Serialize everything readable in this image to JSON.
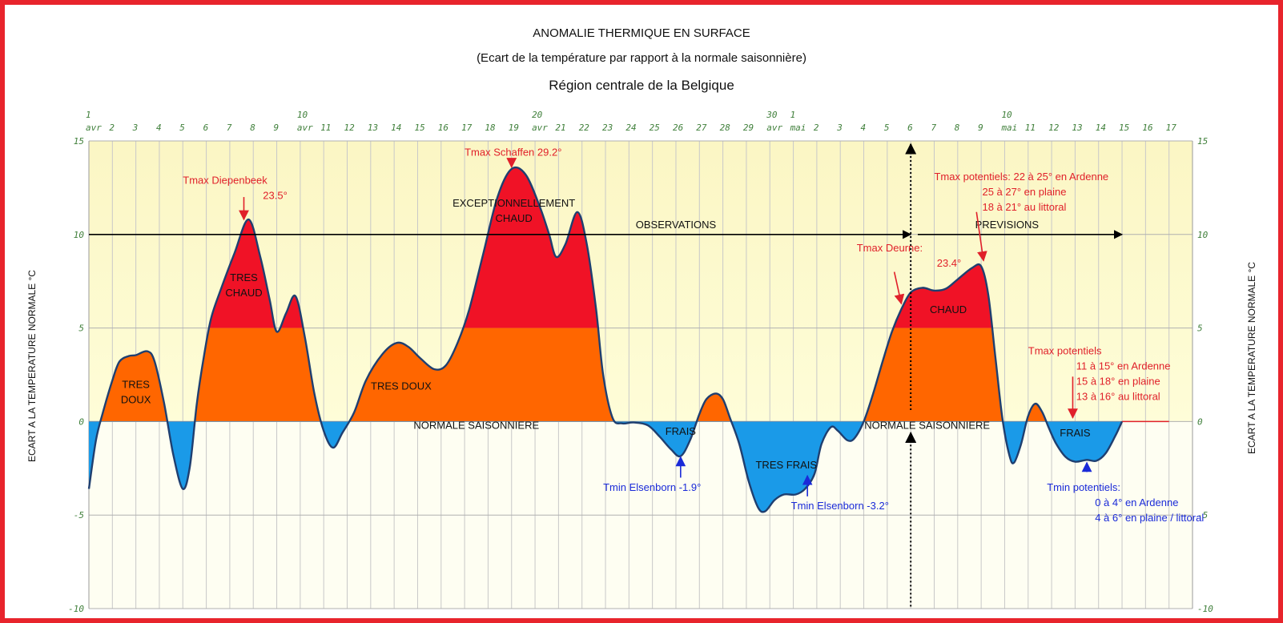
{
  "chart_data": {
    "type": "area",
    "title": "ANOMALIE THERMIQUE EN SURFACE",
    "subtitle": "(Ecart de la température par rapport à la normale saisonnière)",
    "region": "Région centrale de la Belgique",
    "ylabel": "ECART A LA TEMPERATURE NORMALE °C",
    "ylim": [
      -10,
      15
    ],
    "yticks": [
      "15",
      "10",
      "5",
      "0",
      "-5",
      "-10"
    ],
    "grid": true,
    "x_labels": [
      {
        "x": 1,
        "l1": "1",
        "l2": "avr"
      },
      {
        "x": 2,
        "l1": "",
        "l2": "2"
      },
      {
        "x": 3,
        "l1": "",
        "l2": "3"
      },
      {
        "x": 4,
        "l1": "",
        "l2": "4"
      },
      {
        "x": 5,
        "l1": "",
        "l2": "5"
      },
      {
        "x": 6,
        "l1": "",
        "l2": "6"
      },
      {
        "x": 7,
        "l1": "",
        "l2": "7"
      },
      {
        "x": 8,
        "l1": "",
        "l2": "8"
      },
      {
        "x": 9,
        "l1": "",
        "l2": "9"
      },
      {
        "x": 10,
        "l1": "10",
        "l2": "avr"
      },
      {
        "x": 11,
        "l1": "",
        "l2": "11"
      },
      {
        "x": 12,
        "l1": "",
        "l2": "12"
      },
      {
        "x": 13,
        "l1": "",
        "l2": "13"
      },
      {
        "x": 14,
        "l1": "",
        "l2": "14"
      },
      {
        "x": 15,
        "l1": "",
        "l2": "15"
      },
      {
        "x": 16,
        "l1": "",
        "l2": "16"
      },
      {
        "x": 17,
        "l1": "",
        "l2": "17"
      },
      {
        "x": 18,
        "l1": "",
        "l2": "18"
      },
      {
        "x": 19,
        "l1": "",
        "l2": "19"
      },
      {
        "x": 20,
        "l1": "20",
        "l2": "avr"
      },
      {
        "x": 21,
        "l1": "",
        "l2": "21"
      },
      {
        "x": 22,
        "l1": "",
        "l2": "22"
      },
      {
        "x": 23,
        "l1": "",
        "l2": "23"
      },
      {
        "x": 24,
        "l1": "",
        "l2": "24"
      },
      {
        "x": 25,
        "l1": "",
        "l2": "25"
      },
      {
        "x": 26,
        "l1": "",
        "l2": "26"
      },
      {
        "x": 27,
        "l1": "",
        "l2": "27"
      },
      {
        "x": 28,
        "l1": "",
        "l2": "28"
      },
      {
        "x": 29,
        "l1": "",
        "l2": "29"
      },
      {
        "x": 30,
        "l1": "30",
        "l2": "avr"
      },
      {
        "x": 31,
        "l1": "1",
        "l2": "mai"
      },
      {
        "x": 32,
        "l1": "",
        "l2": "2"
      },
      {
        "x": 33,
        "l1": "",
        "l2": "3"
      },
      {
        "x": 34,
        "l1": "",
        "l2": "4"
      },
      {
        "x": 35,
        "l1": "",
        "l2": "5"
      },
      {
        "x": 36,
        "l1": "",
        "l2": "6"
      },
      {
        "x": 37,
        "l1": "",
        "l2": "7"
      },
      {
        "x": 38,
        "l1": "",
        "l2": "8"
      },
      {
        "x": 39,
        "l1": "",
        "l2": "9"
      },
      {
        "x": 40,
        "l1": "10",
        "l2": "mai"
      },
      {
        "x": 41,
        "l1": "",
        "l2": "11"
      },
      {
        "x": 42,
        "l1": "",
        "l2": "12"
      },
      {
        "x": 43,
        "l1": "",
        "l2": "13"
      },
      {
        "x": 44,
        "l1": "",
        "l2": "14"
      },
      {
        "x": 45,
        "l1": "",
        "l2": "15"
      },
      {
        "x": 46,
        "l1": "",
        "l2": "16"
      },
      {
        "x": 47,
        "l1": "",
        "l2": "17"
      }
    ],
    "series": [
      {
        "points": [
          [
            1.0,
            -3.6
          ],
          [
            1.3,
            -1.0
          ],
          [
            1.6,
            0.5
          ],
          [
            2.0,
            2.2
          ],
          [
            2.3,
            3.2
          ],
          [
            2.7,
            3.5
          ],
          [
            3.0,
            3.55
          ],
          [
            3.5,
            3.75
          ],
          [
            3.8,
            3.2
          ],
          [
            4.2,
            1.0
          ],
          [
            4.6,
            -1.8
          ],
          [
            5.0,
            -3.6
          ],
          [
            5.3,
            -2.4
          ],
          [
            5.6,
            1.0
          ],
          [
            5.9,
            3.5
          ],
          [
            6.2,
            5.5
          ],
          [
            6.6,
            7.0
          ],
          [
            7.2,
            9.0
          ],
          [
            7.8,
            10.8
          ],
          [
            8.3,
            8.8
          ],
          [
            8.7,
            6.5
          ],
          [
            9.0,
            4.8
          ],
          [
            9.4,
            5.8
          ],
          [
            9.8,
            6.7
          ],
          [
            10.2,
            4.5
          ],
          [
            10.6,
            1.5
          ],
          [
            11.0,
            -0.5
          ],
          [
            11.4,
            -1.4
          ],
          [
            11.8,
            -0.6
          ],
          [
            12.3,
            0.5
          ],
          [
            12.8,
            2.2
          ],
          [
            13.5,
            3.6
          ],
          [
            14.1,
            4.2
          ],
          [
            14.6,
            4.0
          ],
          [
            15.1,
            3.4
          ],
          [
            15.7,
            2.8
          ],
          [
            16.2,
            3.0
          ],
          [
            16.7,
            4.2
          ],
          [
            17.2,
            6.0
          ],
          [
            17.8,
            9.0
          ],
          [
            18.4,
            12.0
          ],
          [
            19.0,
            13.5
          ],
          [
            19.6,
            13.2
          ],
          [
            20.2,
            11.5
          ],
          [
            20.6,
            10.0
          ],
          [
            20.9,
            8.8
          ],
          [
            21.3,
            9.5
          ],
          [
            21.8,
            11.2
          ],
          [
            22.2,
            9.5
          ],
          [
            22.6,
            6.0
          ],
          [
            22.9,
            2.5
          ],
          [
            23.3,
            0.2
          ],
          [
            23.7,
            -0.1
          ],
          [
            24.2,
            -0.05
          ],
          [
            24.8,
            -0.2
          ],
          [
            25.3,
            -0.8
          ],
          [
            25.8,
            -1.5
          ],
          [
            26.2,
            -1.85
          ],
          [
            26.6,
            -1.0
          ],
          [
            27.0,
            0.4
          ],
          [
            27.3,
            1.2
          ],
          [
            27.7,
            1.5
          ],
          [
            28.0,
            1.2
          ],
          [
            28.3,
            0.2
          ],
          [
            28.7,
            -1.2
          ],
          [
            29.1,
            -3.2
          ],
          [
            29.5,
            -4.6
          ],
          [
            29.8,
            -4.8
          ],
          [
            30.2,
            -4.2
          ],
          [
            30.6,
            -3.9
          ],
          [
            31.1,
            -3.9
          ],
          [
            31.5,
            -3.6
          ],
          [
            31.9,
            -2.8
          ],
          [
            32.2,
            -1.2
          ],
          [
            32.6,
            -0.3
          ],
          [
            32.9,
            -0.5
          ],
          [
            33.3,
            -1.0
          ],
          [
            33.6,
            -0.9
          ],
          [
            34.0,
            0.0
          ],
          [
            34.4,
            1.5
          ],
          [
            34.8,
            3.2
          ],
          [
            35.2,
            4.8
          ],
          [
            35.6,
            6.0
          ],
          [
            36.0,
            6.9
          ],
          [
            36.5,
            7.15
          ],
          [
            37.0,
            7.0
          ],
          [
            37.5,
            7.1
          ],
          [
            38.0,
            7.6
          ],
          [
            38.6,
            8.2
          ],
          [
            39.0,
            8.3
          ],
          [
            39.3,
            6.8
          ],
          [
            39.6,
            3.5
          ],
          [
            39.9,
            0.2
          ],
          [
            40.2,
            -1.8
          ],
          [
            40.4,
            -2.2
          ],
          [
            40.7,
            -1.2
          ],
          [
            41.0,
            0.3
          ],
          [
            41.3,
            0.95
          ],
          [
            41.6,
            0.5
          ],
          [
            41.9,
            -0.4
          ],
          [
            42.2,
            -1.2
          ],
          [
            42.6,
            -1.9
          ],
          [
            43.0,
            -2.15
          ],
          [
            43.5,
            -2.05
          ],
          [
            43.9,
            -2.1
          ],
          [
            44.3,
            -1.7
          ],
          [
            44.7,
            -0.8
          ],
          [
            45.0,
            0.0
          ]
        ]
      }
    ],
    "normal_line": {
      "from": 45.0,
      "to": 47.0,
      "value": 0
    },
    "colors": {
      "very_warm": "#f01226",
      "warm": "#ff6600",
      "cool": "#1a9ae8",
      "curve": "#1f3f70",
      "bg_positive": "#fefdd8",
      "bg_top": "#fbf6c4",
      "bg_negative": "#fefef2",
      "grid": "#c8c8c8",
      "tick": "#3f7f3a",
      "annot_red": "#e0202a",
      "annot_blue": "#1a2ad8",
      "frame": "#e8242c"
    },
    "markers": {
      "observations": {
        "label": "OBSERVATIONS",
        "from": 1.0,
        "to": 36.0,
        "y": 10
      },
      "previsions": {
        "label": "PREVISIONS",
        "from": 36.3,
        "to": 45.0,
        "y": 10
      },
      "divider_x": 36.0
    },
    "zones": [
      {
        "lines": [
          "TRES",
          "DOUX"
        ],
        "x": 3.0,
        "y": 1.8
      },
      {
        "lines": [
          "TRES",
          "CHAUD"
        ],
        "x": 7.6,
        "y": 7.5
      },
      {
        "lines": [
          "TRES DOUX"
        ],
        "x": 14.3,
        "y": 1.7
      },
      {
        "lines": [
          "EXCEPTIONNELLEMENT",
          "CHAUD"
        ],
        "x": 19.1,
        "y": 11.5
      },
      {
        "lines": [
          "NORMALE SAISONNIERE"
        ],
        "x": 17.5,
        "y": -0.4
      },
      {
        "lines": [
          "FRAIS"
        ],
        "x": 26.2,
        "y": -0.7
      },
      {
        "lines": [
          "TRES FRAIS"
        ],
        "x": 30.7,
        "y": -2.5
      },
      {
        "lines": [
          "NORMALE SAISONNIERE"
        ],
        "x": 36.7,
        "y": -0.4
      },
      {
        "lines": [
          "CHAUD"
        ],
        "x": 37.6,
        "y": 5.8
      },
      {
        "lines": [
          "FRAIS"
        ],
        "x": 43.0,
        "y": -0.8
      }
    ],
    "annotations": [
      {
        "color": "red",
        "lines": [
          "Tmax Diepenbeek",
          "23.5°"
        ],
        "x": 5.0,
        "y": 12.7,
        "arrow": [
          [
            7.6,
            12.0
          ],
          [
            7.6,
            10.8
          ]
        ]
      },
      {
        "color": "red",
        "lines": [
          "Tmax Schaffen 29.2°"
        ],
        "x": 17.0,
        "y": 14.2,
        "arrow": [
          [
            19.0,
            14.0
          ],
          [
            19.0,
            13.6
          ]
        ]
      },
      {
        "color": "red",
        "lines": [
          "Tmax Deurne:",
          "23.4°"
        ],
        "x": 33.7,
        "y": 9.1,
        "arrow": [
          [
            35.3,
            8.0
          ],
          [
            35.6,
            6.3
          ]
        ]
      },
      {
        "color": "red",
        "lines": [
          "Tmax potentiels: 22 à 25° en Ardenne",
          "25 à 27° en plaine",
          "18 à 21° au littoral"
        ],
        "x": 37.0,
        "y": 12.9,
        "arrow": [
          [
            38.8,
            11.2
          ],
          [
            39.1,
            8.6
          ]
        ]
      },
      {
        "color": "red",
        "lines": [
          "Tmax potentiels",
          "11 à 15° en Ardenne",
          "15 à 18° en plaine",
          "13 à 16° au littoral"
        ],
        "x": 41.0,
        "y": 3.6,
        "arrow": [
          [
            42.9,
            2.4
          ],
          [
            42.9,
            0.2
          ]
        ]
      },
      {
        "color": "blue",
        "lines": [
          "Tmin Elsenborn -1.9°"
        ],
        "x": 22.9,
        "y": -3.7,
        "arrow": [
          [
            26.2,
            -3.0
          ],
          [
            26.2,
            -1.9
          ]
        ]
      },
      {
        "color": "blue",
        "lines": [
          "Tmin Elsenborn -3.2°"
        ],
        "x": 30.9,
        "y": -4.7,
        "arrow": [
          [
            31.6,
            -4.0
          ],
          [
            31.6,
            -2.9
          ]
        ]
      },
      {
        "color": "blue",
        "lines": [
          "Tmin potentiels:",
          "0 à 4° en Ardenne",
          "4 à 6° en plaine  / littoral"
        ],
        "x": 41.8,
        "y": -3.7,
        "arrow": [
          [
            43.5,
            -2.7
          ],
          [
            43.5,
            -2.2
          ]
        ]
      }
    ]
  }
}
